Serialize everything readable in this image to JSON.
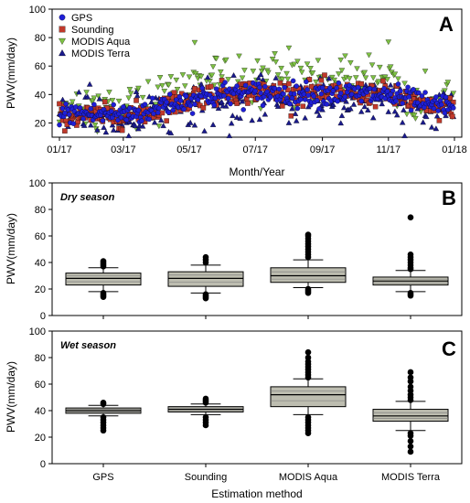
{
  "chart_data": [
    {
      "type": "scatter",
      "panel_label": "A",
      "xlabel": "Month/Year",
      "ylabel": "PWV(mm/day)",
      "x_range": [
        "2017-01-01",
        "2018-01-01"
      ],
      "ylim": [
        10,
        100
      ],
      "yticks": [
        20,
        40,
        60,
        80,
        100
      ],
      "xtick_labels": [
        "01/17",
        "03/17",
        "05/17",
        "07/17",
        "09/17",
        "11/17",
        "01/18"
      ],
      "xtick_dates": [
        "2017-01-01",
        "2017-03-01",
        "2017-05-01",
        "2017-07-01",
        "2017-09-01",
        "2017-11-01",
        "2018-01-01"
      ],
      "legend_position": "top-left",
      "series": [
        {
          "name": "GPS",
          "marker": "circle",
          "color": "#1f1fd6",
          "monthly_mean": [
            27,
            26,
            26,
            33,
            38,
            41,
            41,
            40,
            41,
            40,
            39,
            32
          ],
          "spread": 4
        },
        {
          "name": "Sounding",
          "marker": "square",
          "color": "#c0392b",
          "monthly_mean": [
            25,
            25,
            25,
            32,
            39,
            42,
            42,
            41,
            41,
            41,
            39,
            30
          ],
          "spread": 4
        },
        {
          "name": "MODIS Aqua",
          "marker": "triangle-down",
          "color": "#7dc143",
          "monthly_mean": [
            30,
            30,
            30,
            38,
            54,
            56,
            52,
            51,
            54,
            52,
            48,
            38
          ],
          "spread": 9
        },
        {
          "name": "MODIS Terra",
          "marker": "triangle-up",
          "color": "#1a1a8c",
          "monthly_mean": [
            25,
            25,
            25,
            30,
            35,
            37,
            36,
            36,
            37,
            36,
            34,
            28
          ],
          "spread": 8
        }
      ]
    },
    {
      "type": "box",
      "panel_label": "B",
      "annotation": "Dry season",
      "xlabel": "",
      "ylabel": "PWV(mm/day)",
      "ylim": [
        0,
        100
      ],
      "yticks": [
        0,
        20,
        40,
        60,
        80,
        100
      ],
      "categories": [
        "GPS",
        "Sounding",
        "MODIS Aqua",
        "MODIS Terra"
      ],
      "boxes": [
        {
          "q1": 23,
          "median": 28,
          "q3": 32,
          "whisker_low": 18,
          "whisker_high": 36,
          "outliers": [
            14,
            15,
            16,
            17,
            37,
            38,
            39,
            40,
            41
          ]
        },
        {
          "q1": 22,
          "median": 28,
          "q3": 33,
          "whisker_low": 17,
          "whisker_high": 38,
          "outliers": [
            13,
            14,
            15,
            16,
            40,
            42,
            44
          ]
        },
        {
          "q1": 25,
          "median": 30,
          "q3": 36,
          "whisker_low": 21,
          "whisker_high": 42,
          "outliers": [
            17,
            18,
            19,
            20,
            44,
            46,
            48,
            50,
            52,
            54,
            56,
            58,
            60,
            61
          ]
        },
        {
          "q1": 23,
          "median": 26,
          "q3": 29,
          "whisker_low": 18,
          "whisker_high": 34,
          "outliers": [
            15,
            16,
            17,
            35,
            36,
            38,
            40,
            42,
            44,
            46,
            74
          ]
        }
      ]
    },
    {
      "type": "box",
      "panel_label": "C",
      "annotation": "Wet season",
      "xlabel": "Estimation method",
      "ylabel": "PWV(mm/day)",
      "ylim": [
        0,
        100
      ],
      "yticks": [
        0,
        20,
        40,
        60,
        80,
        100
      ],
      "categories": [
        "GPS",
        "Sounding",
        "MODIS Aqua",
        "MODIS Terra"
      ],
      "boxes": [
        {
          "q1": 38,
          "median": 40,
          "q3": 42,
          "whisker_low": 36,
          "whisker_high": 44,
          "outliers": [
            25,
            27,
            29,
            31,
            33,
            35,
            45,
            46
          ]
        },
        {
          "q1": 39,
          "median": 41,
          "q3": 43,
          "whisker_low": 37,
          "whisker_high": 45,
          "outliers": [
            29,
            31,
            33,
            35,
            46,
            47,
            48,
            49
          ]
        },
        {
          "q1": 43,
          "median": 52,
          "q3": 58,
          "whisker_low": 37,
          "whisker_high": 64,
          "outliers": [
            23,
            25,
            27,
            29,
            31,
            33,
            35,
            65,
            67,
            69,
            71,
            73,
            75,
            77,
            80,
            84
          ]
        },
        {
          "q1": 32,
          "median": 36,
          "q3": 41,
          "whisker_low": 25,
          "whisker_high": 47,
          "outliers": [
            9,
            13,
            17,
            21,
            23,
            48,
            50,
            52,
            55,
            58,
            62,
            65,
            69
          ]
        }
      ]
    }
  ]
}
